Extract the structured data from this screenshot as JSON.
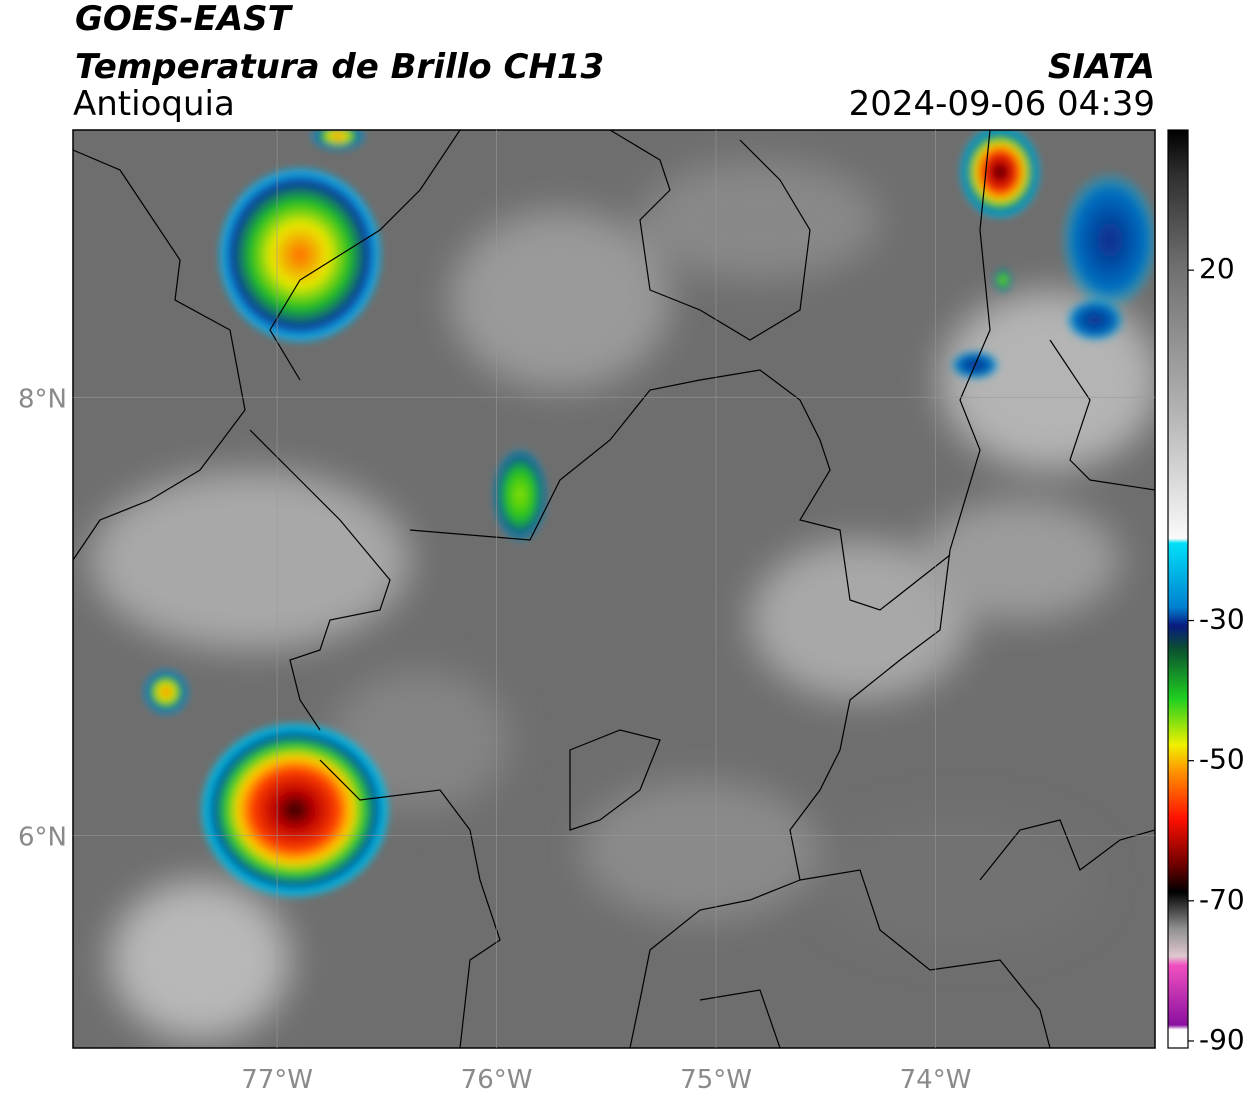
{
  "header": {
    "title": "GOES-EAST",
    "subtitle": "Temperatura de Brillo CH13",
    "region": "Antioquia",
    "source": "SIATA",
    "timestamp": "2024-09-06 04:39"
  },
  "map": {
    "xlim": [
      -77.93,
      -73.0
    ],
    "ylim": [
      5.03,
      9.22
    ],
    "xticks": [
      {
        "value": -77,
        "label": "77°W"
      },
      {
        "value": -76,
        "label": "76°W"
      },
      {
        "value": -75,
        "label": "75°W"
      },
      {
        "value": -74,
        "label": "74°W"
      }
    ],
    "yticks": [
      {
        "value": 8,
        "label": "8°N"
      },
      {
        "value": 6,
        "label": "6°N"
      }
    ],
    "grid": true
  },
  "colorbar": {
    "lim": [
      -91,
      40
    ],
    "ticks": [
      20,
      -30,
      -50,
      -70,
      -90
    ]
  }
}
